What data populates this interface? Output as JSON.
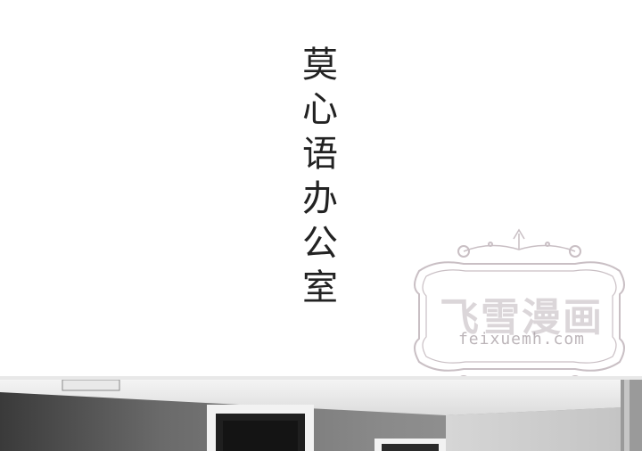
{
  "title": {
    "chars": [
      "莫",
      "心",
      "语",
      "办",
      "公",
      "室"
    ]
  },
  "watermark": {
    "title": "飞雪漫画",
    "url": "feixuemh.com"
  },
  "colors": {
    "title_text": "#222222",
    "watermark": "#c9bfc4"
  }
}
